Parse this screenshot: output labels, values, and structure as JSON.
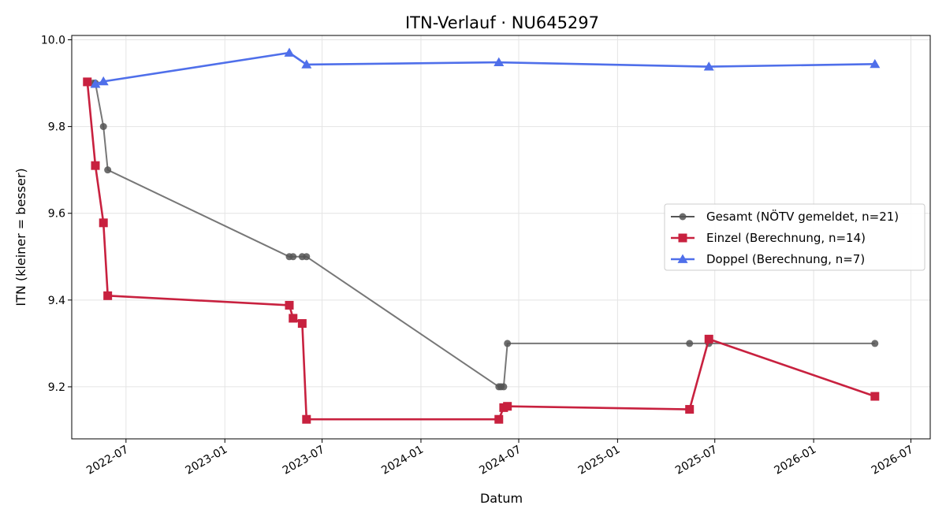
{
  "chart_data": {
    "type": "line",
    "title": "ITN-Verlauf · NU645297",
    "xlabel": "Datum",
    "ylabel": "ITN  (kleiner = besser)",
    "xlim": [
      "2022-03-22",
      "2026-08-06"
    ],
    "ylim": [
      9.08,
      10.01
    ],
    "grid": true,
    "legend_position": "center-right",
    "x_ticks": [
      "2022-07",
      "2023-01",
      "2023-07",
      "2024-01",
      "2024-07",
      "2025-01",
      "2025-07",
      "2026-01",
      "2026-07"
    ],
    "y_ticks": [
      9.2,
      9.4,
      9.6,
      9.8,
      10.0
    ],
    "series": [
      {
        "name": "Gesamt (NÖTV gemeldet, n=21)",
        "color": "#555555",
        "marker": "circle",
        "points": [
          {
            "x": "2022-05-01",
            "y": 9.9
          },
          {
            "x": "2022-05-05",
            "y": 9.9
          },
          {
            "x": "2022-05-20",
            "y": 9.8
          },
          {
            "x": "2022-05-28",
            "y": 9.7
          },
          {
            "x": "2023-05-01",
            "y": 9.5
          },
          {
            "x": "2023-05-08",
            "y": 9.5
          },
          {
            "x": "2023-05-25",
            "y": 9.5
          },
          {
            "x": "2023-06-02",
            "y": 9.5
          },
          {
            "x": "2024-05-25",
            "y": 9.2
          },
          {
            "x": "2024-05-29",
            "y": 9.2
          },
          {
            "x": "2024-06-03",
            "y": 9.2
          },
          {
            "x": "2024-06-10",
            "y": 9.3
          },
          {
            "x": "2025-05-15",
            "y": 9.3
          },
          {
            "x": "2025-06-20",
            "y": 9.3
          },
          {
            "x": "2026-04-25",
            "y": 9.3
          }
        ]
      },
      {
        "name": "Einzel (Berechnung, n=14)",
        "color": "#c8213f",
        "marker": "square",
        "points": [
          {
            "x": "2022-04-20",
            "y": 9.903
          },
          {
            "x": "2022-05-05",
            "y": 9.71
          },
          {
            "x": "2022-05-20",
            "y": 9.578
          },
          {
            "x": "2022-05-28",
            "y": 9.41
          },
          {
            "x": "2023-05-01",
            "y": 9.388
          },
          {
            "x": "2023-05-08",
            "y": 9.358
          },
          {
            "x": "2023-05-25",
            "y": 9.346
          },
          {
            "x": "2023-06-02",
            "y": 9.125
          },
          {
            "x": "2024-05-25",
            "y": 9.125
          },
          {
            "x": "2024-06-03",
            "y": 9.152
          },
          {
            "x": "2024-06-10",
            "y": 9.155
          },
          {
            "x": "2025-05-15",
            "y": 9.148
          },
          {
            "x": "2025-06-20",
            "y": 9.31
          },
          {
            "x": "2026-04-25",
            "y": 9.178
          }
        ]
      },
      {
        "name": "Doppel (Berechnung, n=7)",
        "color": "#4f6fea",
        "marker": "triangle",
        "points": [
          {
            "x": "2022-05-05",
            "y": 9.898
          },
          {
            "x": "2022-05-20",
            "y": 9.904
          },
          {
            "x": "2023-05-01",
            "y": 9.97
          },
          {
            "x": "2023-06-02",
            "y": 9.943
          },
          {
            "x": "2024-05-25",
            "y": 9.948
          },
          {
            "x": "2025-06-20",
            "y": 9.938
          },
          {
            "x": "2026-04-25",
            "y": 9.944
          }
        ]
      }
    ]
  }
}
